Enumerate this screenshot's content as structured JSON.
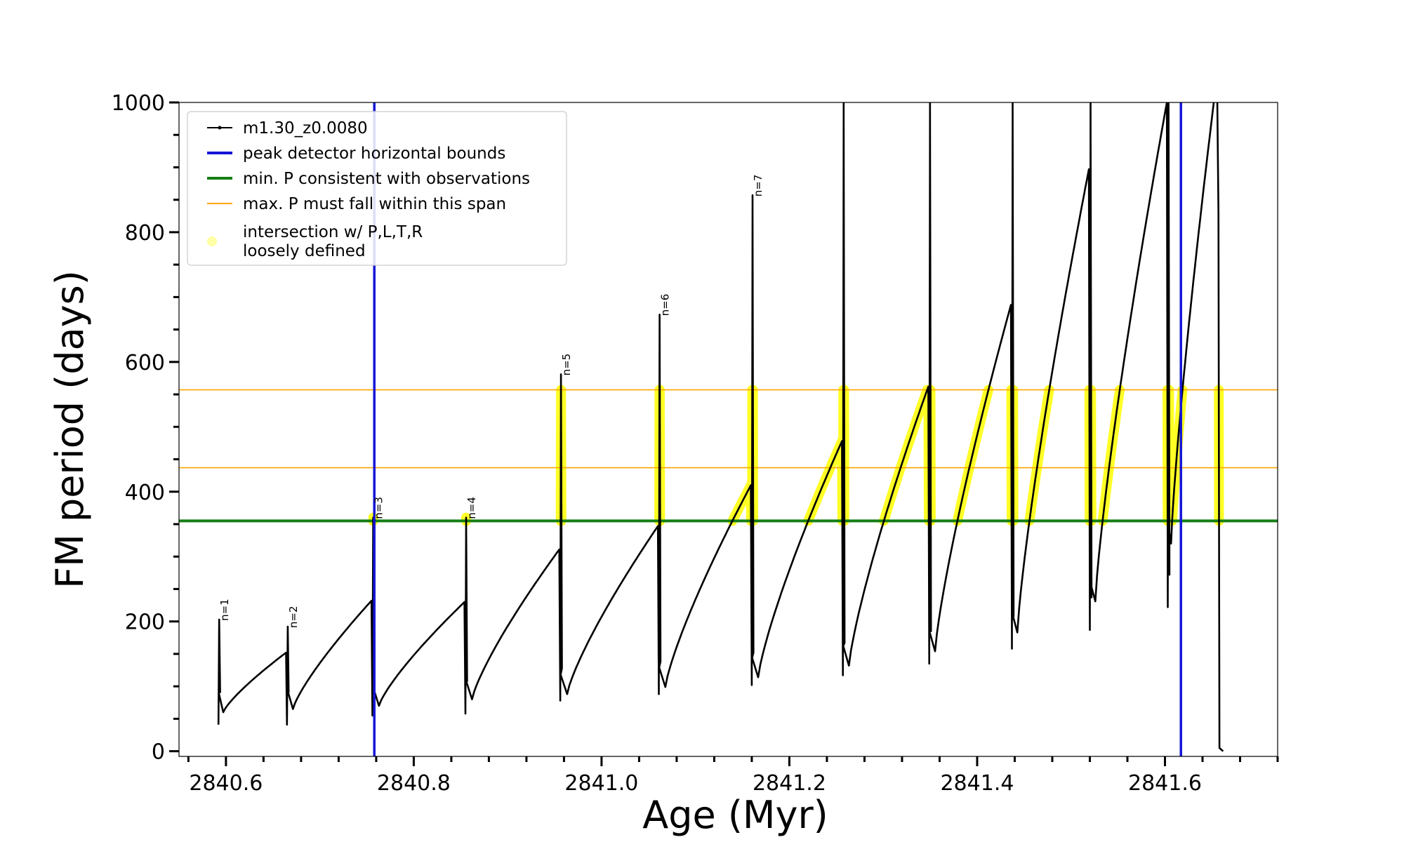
{
  "chart_data": {
    "type": "line",
    "xlabel": "Age (Myr)",
    "ylabel": "FM period (days)",
    "xlim": [
      2840.55,
      2841.72
    ],
    "ylim": [
      -8,
      1000
    ],
    "xticks": [
      2840.6,
      2840.8,
      2841.0,
      2841.2,
      2841.4,
      2841.6
    ],
    "xtick_labels": [
      "2840.6",
      "2840.8",
      "2841.0",
      "2841.2",
      "2841.4",
      "2841.6"
    ],
    "yticks": [
      0,
      200,
      400,
      600,
      800,
      1000
    ],
    "ytick_labels": [
      "0",
      "200",
      "400",
      "600",
      "800",
      "1000"
    ],
    "grid": false,
    "legend_position": "top-left",
    "legend": [
      {
        "label": "m1.30_z0.0080",
        "style": "line-dot",
        "color": "#000000"
      },
      {
        "label": "peak detector horizontal bounds",
        "style": "line",
        "color": "#1515d8"
      },
      {
        "label": "min. P consistent with observations",
        "style": "line",
        "color": "#157f15"
      },
      {
        "label": "max. P must fall within this span",
        "style": "line",
        "color": "#ffa500"
      },
      {
        "label": "intersection w/ P,L,T,R\nloosely defined",
        "style": "marker",
        "color": "#ffff00"
      }
    ],
    "series_model": {
      "name": "m1.30_z0.0080",
      "color": "#000000",
      "segments": [
        {
          "x0": 2840.592,
          "x1": 2840.665,
          "spike": 203,
          "floor": 41,
          "min": 60,
          "max": 152
        },
        {
          "x0": 2840.665,
          "x1": 2840.756,
          "spike": 192,
          "floor": 41,
          "min": 65,
          "max": 232
        },
        {
          "x0": 2840.756,
          "x1": 2840.855,
          "spike": 360,
          "floor": 55,
          "min": 70,
          "max": 230
        },
        {
          "x0": 2840.855,
          "x1": 2840.956,
          "spike": 360,
          "floor": 58,
          "min": 80,
          "max": 311
        },
        {
          "x0": 2840.956,
          "x1": 2841.061,
          "spike": 581,
          "floor": 78,
          "min": 88,
          "max": 347
        },
        {
          "x0": 2841.061,
          "x1": 2841.16,
          "spike": 673,
          "floor": 88,
          "min": 99,
          "max": 410
        },
        {
          "x0": 2841.16,
          "x1": 2841.257,
          "spike": 857,
          "floor": 102,
          "min": 114,
          "max": 478
        },
        {
          "x0": 2841.257,
          "x1": 2841.349,
          "spike": 1000,
          "floor": 117,
          "min": 132,
          "max": 562
        },
        {
          "x0": 2841.349,
          "x1": 2841.437,
          "spike": 1000,
          "floor": 135,
          "min": 154,
          "max": 688
        },
        {
          "x0": 2841.437,
          "x1": 2841.52,
          "spike": 1000,
          "floor": 158,
          "min": 183,
          "max": 897
        },
        {
          "x0": 2841.52,
          "x1": 2841.603,
          "spike": 1000,
          "floor": 187,
          "min": 231,
          "max": 1000
        },
        {
          "x0": 2841.603,
          "x1": 2841.653,
          "spike": 1000,
          "floor": 222,
          "min": 320,
          "max": 1000
        }
      ],
      "final_drop": {
        "x": 2841.655,
        "y_end": 0,
        "x_end": 2841.662
      }
    },
    "peak_labels": [
      {
        "text": "n=1",
        "x": 2840.592,
        "y": 203
      },
      {
        "text": "n=2",
        "x": 2840.665,
        "y": 192
      },
      {
        "text": "n=3",
        "x": 2840.756,
        "y": 360
      },
      {
        "text": "n=4",
        "x": 2840.855,
        "y": 360
      },
      {
        "text": "n=5",
        "x": 2840.956,
        "y": 581
      },
      {
        "text": "n=6",
        "x": 2841.061,
        "y": 673
      },
      {
        "text": "n=7",
        "x": 2841.16,
        "y": 857
      }
    ],
    "vertical_lines": [
      {
        "x": 2840.758,
        "color": "#1515d8"
      },
      {
        "x": 2841.617,
        "color": "#1515d8"
      }
    ],
    "horizontal_lines": [
      {
        "y": 355,
        "color": "#157f15"
      },
      {
        "y": 437,
        "color": "#ffa500"
      },
      {
        "y": 557,
        "color": "#ffa500"
      }
    ],
    "highlight_band": {
      "ymin": 355,
      "ymax": 557,
      "color": "#ffff00"
    }
  }
}
